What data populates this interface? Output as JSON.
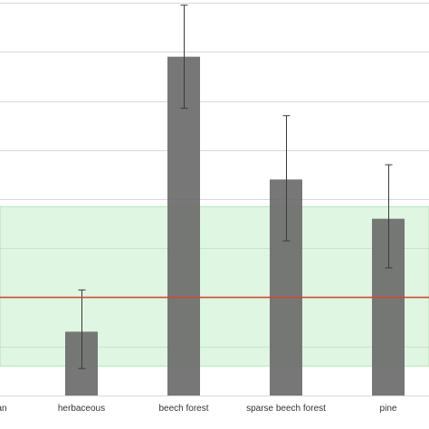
{
  "chart_data": {
    "type": "bar",
    "title": "",
    "xlabel": "",
    "ylabel": "",
    "categories": [
      "urban",
      "herbaceous",
      "beech forest",
      "sparse beech forest",
      "pine"
    ],
    "tick_labels": [
      "an",
      "herbaceous",
      "beech forest",
      "sparse beech forest",
      "pine"
    ],
    "values": [
      null,
      1.3,
      6.9,
      4.4,
      3.6
    ],
    "errors": [
      null,
      {
        "low": 0.55,
        "high": 2.15
      },
      {
        "low": 5.85,
        "high": 7.95
      },
      {
        "low": 3.15,
        "high": 5.7
      },
      {
        "low": 2.6,
        "high": 4.7
      }
    ],
    "ylim": [
      0,
      8
    ],
    "yticks": [
      0,
      1,
      2,
      3,
      4,
      5,
      6,
      7,
      8
    ],
    "grid": true,
    "reference_line": {
      "value": 2.0,
      "color": "#d9472f"
    },
    "reference_band": {
      "low": 0.6,
      "high": 3.85,
      "color": "#b7ebbf"
    },
    "colors": {
      "bar": "#6b6b6b",
      "error": "#3a3a3a",
      "grid": "#d9d9d9"
    }
  }
}
